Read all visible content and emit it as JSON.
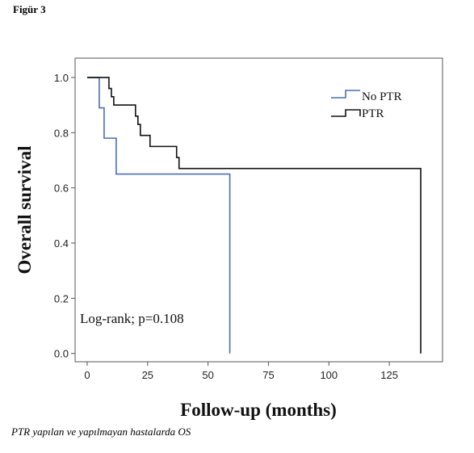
{
  "figure_label": "Figür 3",
  "caption": "PTR yapılan ve yapılmayan hastalarda OS",
  "chart_data": {
    "type": "line",
    "subtype": "kaplan-meier-step",
    "xlabel": "Follow-up (months)",
    "ylabel": "Overall survival",
    "xlim": [
      -5,
      147
    ],
    "ylim": [
      -0.03,
      1.07
    ],
    "xticks": [
      0,
      25,
      50,
      75,
      100,
      125
    ],
    "xtick_labels": [
      "0",
      "25",
      "50",
      "75",
      "100",
      "125"
    ],
    "yticks": [
      0.0,
      0.2,
      0.4,
      0.6,
      0.8,
      1.0
    ],
    "ytick_labels": [
      "0.0",
      "0.2",
      "0.4",
      "0.6",
      "0.8",
      "1.0"
    ],
    "grid": false,
    "legend_position": "top-right",
    "annotation": "Log-rank; p=0.108",
    "series": [
      {
        "name": "No PTR",
        "color": "#4a6fb5",
        "steps": [
          {
            "x": 0,
            "y": 1.0
          },
          {
            "x": 5,
            "y": 0.89
          },
          {
            "x": 7,
            "y": 0.78
          },
          {
            "x": 12,
            "y": 0.65
          },
          {
            "x": 59,
            "y": 0.0
          }
        ],
        "end_x": 59
      },
      {
        "name": "PTR",
        "color": "#111111",
        "steps": [
          {
            "x": 0,
            "y": 1.0
          },
          {
            "x": 9,
            "y": 0.96
          },
          {
            "x": 10,
            "y": 0.93
          },
          {
            "x": 11,
            "y": 0.9
          },
          {
            "x": 20,
            "y": 0.86
          },
          {
            "x": 21,
            "y": 0.83
          },
          {
            "x": 22,
            "y": 0.79
          },
          {
            "x": 26,
            "y": 0.75
          },
          {
            "x": 37,
            "y": 0.71
          },
          {
            "x": 38,
            "y": 0.67
          },
          {
            "x": 138,
            "y": 0.0
          }
        ],
        "end_x": 138
      }
    ]
  }
}
